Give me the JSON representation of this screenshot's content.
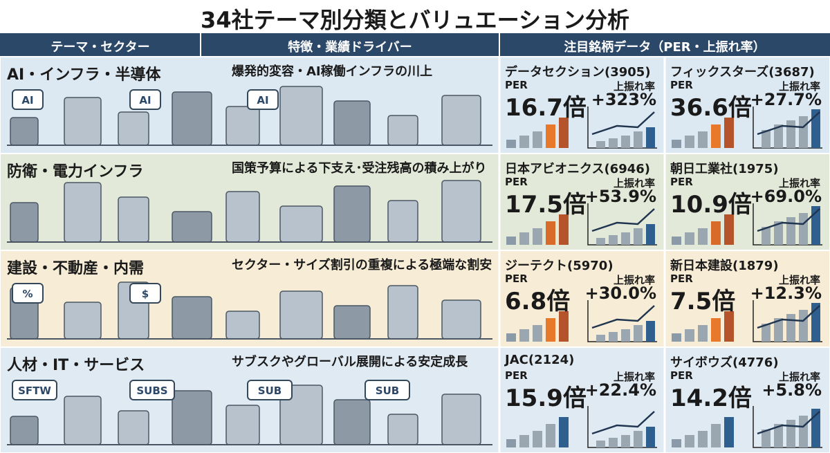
{
  "title": "34社テーマ別分類とバリュエーション分析",
  "header": [
    "テーマ・セクター",
    "特徴・業績ドライバー",
    "注目銘柄データ（PER・上振れ率）"
  ],
  "rows": [
    {
      "theme": "AI・インフラ・半導体",
      "driver": "爆発的変容・AI稼働インフラの川上",
      "icon_labels": [
        "AI",
        "AI",
        "AI"
      ],
      "stocks": [
        {
          "name": "データセクション(3905)",
          "per_label": "PER",
          "per": "16.7倍",
          "upside_label": "上振れ率",
          "upside": "+323%"
        },
        {
          "name": "フィックスターズ(3687)",
          "per_label": "PER",
          "per": "36.6倍",
          "upside_label": "上振れ率",
          "upside": "+27.7%"
        }
      ]
    },
    {
      "theme": "防衛・電力インフラ",
      "driver": "国策予算による下支え･受注残高の積み上がり",
      "icon_labels": [],
      "stocks": [
        {
          "name": "日本アビオニクス(6946)",
          "per_label": "PER",
          "per": "17.5倍",
          "upside_label": "上振れ率",
          "upside": "+53.9%"
        },
        {
          "name": "朝日工業社(1975)",
          "per_label": "PER",
          "per": "10.9倍",
          "upside_label": "上振れ率",
          "upside": "+69.0%"
        }
      ]
    },
    {
      "theme": "建設・不動産・内需",
      "driver": "セクター・サイズ割引の重複による極端な割安",
      "icon_labels": [
        "%",
        "$"
      ],
      "stocks": [
        {
          "name": "ジーテクト(5970)",
          "per_label": "PER",
          "per": "6.8倍",
          "upside_label": "上振れ率",
          "upside": "+30.0%"
        },
        {
          "name": "新日本建設(1879)",
          "per_label": "PER",
          "per": "7.5倍",
          "upside_label": "上振れ率",
          "upside": "+12.3%"
        }
      ]
    },
    {
      "theme": "人材・IT・サービス",
      "driver": "サブスクやグローバル展開による安定成長",
      "icon_labels": [
        "SFTW",
        "SUBS",
        "SUB",
        "SUB"
      ],
      "stocks": [
        {
          "name": "JAC(2124)",
          "per_label": "PER",
          "per": "15.9倍",
          "upside_label": "上振れ率",
          "upside": "+22.4%"
        },
        {
          "name": "サイボウズ(4776)",
          "per_label": "PER",
          "per": "14.2倍",
          "upside_label": "上振れ率",
          "upside": "+5.8%"
        }
      ]
    }
  ]
}
